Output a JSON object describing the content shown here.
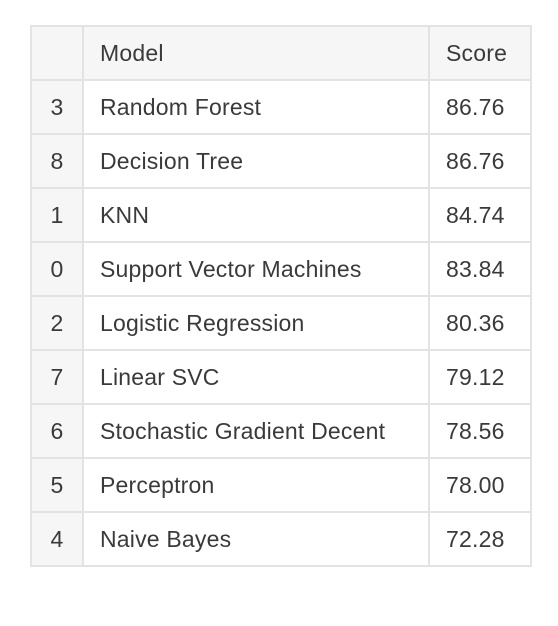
{
  "table": {
    "headers": {
      "index": "",
      "model": "Model",
      "score": "Score"
    },
    "rows": [
      {
        "index": "3",
        "model": "Random Forest",
        "score": "86.76"
      },
      {
        "index": "8",
        "model": "Decision Tree",
        "score": "86.76"
      },
      {
        "index": "1",
        "model": "KNN",
        "score": "84.74"
      },
      {
        "index": "0",
        "model": "Support Vector Machines",
        "score": "83.84"
      },
      {
        "index": "2",
        "model": "Logistic Regression",
        "score": "80.36"
      },
      {
        "index": "7",
        "model": "Linear SVC",
        "score": "79.12"
      },
      {
        "index": "6",
        "model": "Stochastic Gradient Decent",
        "score": "78.56"
      },
      {
        "index": "5",
        "model": "Perceptron",
        "score": "78.00"
      },
      {
        "index": "4",
        "model": "Naive Bayes",
        "score": "72.28"
      }
    ]
  }
}
